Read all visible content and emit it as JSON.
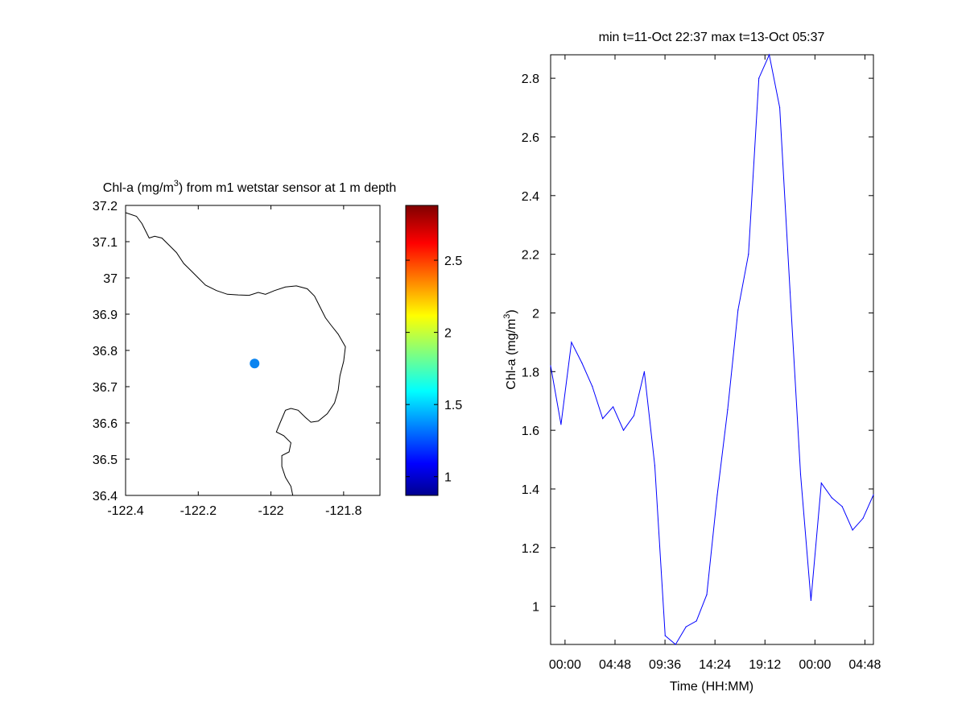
{
  "map_panel": {
    "title": {
      "prefix": "Chl-a (mg/m",
      "superscript": "3",
      "suffix": ") from m1 wetstar sensor at 1 m depth"
    },
    "lon_range": [
      -122.4,
      -121.7
    ],
    "lat_range": [
      36.4,
      37.2
    ],
    "x_ticks": [
      {
        "value": -122.4,
        "label": "-122.4"
      },
      {
        "value": -122.2,
        "label": "-122.2"
      },
      {
        "value": -122.0,
        "label": "-122"
      },
      {
        "value": -121.8,
        "label": "-121.8"
      }
    ],
    "y_ticks": [
      {
        "value": 37.2,
        "label": "37.2"
      },
      {
        "value": 37.1,
        "label": "37.1"
      },
      {
        "value": 37.0,
        "label": "37"
      },
      {
        "value": 36.9,
        "label": "36.9"
      },
      {
        "value": 36.8,
        "label": "36.8"
      },
      {
        "value": 36.7,
        "label": "36.7"
      },
      {
        "value": 36.6,
        "label": "36.6"
      },
      {
        "value": 36.5,
        "label": "36.5"
      },
      {
        "value": 36.4,
        "label": "36.4"
      }
    ],
    "station": {
      "lon": -122.045,
      "lat": 36.764,
      "color": "#0a84f0"
    },
    "coastline": [
      [
        -122.4,
        37.18
      ],
      [
        -122.37,
        37.17
      ],
      [
        -122.355,
        37.15
      ],
      [
        -122.345,
        37.13
      ],
      [
        -122.335,
        37.11
      ],
      [
        -122.32,
        37.115
      ],
      [
        -122.3,
        37.11
      ],
      [
        -122.28,
        37.09
      ],
      [
        -122.26,
        37.07
      ],
      [
        -122.24,
        37.04
      ],
      [
        -122.22,
        37.02
      ],
      [
        -122.2,
        37.0
      ],
      [
        -122.18,
        36.98
      ],
      [
        -122.15,
        36.965
      ],
      [
        -122.12,
        36.955
      ],
      [
        -122.09,
        36.953
      ],
      [
        -122.06,
        36.952
      ],
      [
        -122.035,
        36.96
      ],
      [
        -122.015,
        36.955
      ],
      [
        -121.99,
        36.965
      ],
      [
        -121.96,
        36.975
      ],
      [
        -121.93,
        36.978
      ],
      [
        -121.9,
        36.97
      ],
      [
        -121.88,
        36.95
      ],
      [
        -121.865,
        36.92
      ],
      [
        -121.85,
        36.89
      ],
      [
        -121.835,
        36.87
      ],
      [
        -121.815,
        36.845
      ],
      [
        -121.795,
        36.81
      ],
      [
        -121.8,
        36.77
      ],
      [
        -121.81,
        36.73
      ],
      [
        -121.815,
        36.69
      ],
      [
        -121.825,
        36.655
      ],
      [
        -121.845,
        36.625
      ],
      [
        -121.87,
        36.605
      ],
      [
        -121.89,
        36.602
      ],
      [
        -121.905,
        36.615
      ],
      [
        -121.925,
        36.635
      ],
      [
        -121.945,
        36.64
      ],
      [
        -121.96,
        36.635
      ],
      [
        -121.975,
        36.6
      ],
      [
        -121.985,
        36.575
      ],
      [
        -121.965,
        36.565
      ],
      [
        -121.945,
        36.545
      ],
      [
        -121.95,
        36.52
      ],
      [
        -121.97,
        36.51
      ],
      [
        -121.97,
        36.48
      ],
      [
        -121.96,
        36.45
      ],
      [
        -121.945,
        36.425
      ],
      [
        -121.94,
        36.4
      ]
    ]
  },
  "colorbar": {
    "range": [
      0.87,
      2.88
    ],
    "ticks": [
      {
        "value": 1.0,
        "label": "1"
      },
      {
        "value": 1.5,
        "label": "1.5"
      },
      {
        "value": 2.0,
        "label": "2"
      },
      {
        "value": 2.5,
        "label": "2.5"
      }
    ],
    "colormap": "jet"
  },
  "chart_data": {
    "type": "line",
    "title": "min t=11-Oct 22:37 max t=13-Oct 05:37",
    "xlabel": "Time (HH:MM)",
    "ylabel": {
      "prefix": "Chl-a (mg/m",
      "superscript": "3",
      "suffix": ")"
    },
    "xlim": [
      "2024-10-11 22:37",
      "2024-10-13 05:37"
    ],
    "ylim": [
      0.87,
      2.88
    ],
    "x_ticks": [
      {
        "value": "2024-10-12 00:00",
        "label": "00:00"
      },
      {
        "value": "2024-10-12 04:48",
        "label": "04:48"
      },
      {
        "value": "2024-10-12 09:36",
        "label": "09:36"
      },
      {
        "value": "2024-10-12 14:24",
        "label": "14:24"
      },
      {
        "value": "2024-10-12 19:12",
        "label": "19:12"
      },
      {
        "value": "2024-10-13 00:00",
        "label": "00:00"
      },
      {
        "value": "2024-10-13 04:48",
        "label": "04:48"
      }
    ],
    "y_ticks": [
      {
        "value": 1.0,
        "label": "1"
      },
      {
        "value": 1.2,
        "label": "1.2"
      },
      {
        "value": 1.4,
        "label": "1.4"
      },
      {
        "value": 1.6,
        "label": "1.6"
      },
      {
        "value": 1.8,
        "label": "1.8"
      },
      {
        "value": 2.0,
        "label": "2"
      },
      {
        "value": 2.2,
        "label": "2.2"
      },
      {
        "value": 2.4,
        "label": "2.4"
      },
      {
        "value": 2.6,
        "label": "2.6"
      },
      {
        "value": 2.8,
        "label": "2.8"
      }
    ],
    "series": [
      {
        "color": "#0000ff",
        "points": [
          [
            "2024-10-11 22:37",
            1.82
          ],
          [
            "2024-10-11 23:37",
            1.62
          ],
          [
            "2024-10-12 00:37",
            1.9
          ],
          [
            "2024-10-12 01:37",
            1.83
          ],
          [
            "2024-10-12 02:37",
            1.75
          ],
          [
            "2024-10-12 03:37",
            1.64
          ],
          [
            "2024-10-12 04:37",
            1.68
          ],
          [
            "2024-10-12 05:37",
            1.6
          ],
          [
            "2024-10-12 06:37",
            1.65
          ],
          [
            "2024-10-12 07:37",
            1.8
          ],
          [
            "2024-10-12 08:37",
            1.48
          ],
          [
            "2024-10-12 09:37",
            0.9
          ],
          [
            "2024-10-12 10:37",
            0.87
          ],
          [
            "2024-10-12 11:37",
            0.93
          ],
          [
            "2024-10-12 12:37",
            0.95
          ],
          [
            "2024-10-12 13:37",
            1.04
          ],
          [
            "2024-10-12 14:37",
            1.38
          ],
          [
            "2024-10-12 15:37",
            1.67
          ],
          [
            "2024-10-12 16:37",
            2.01
          ],
          [
            "2024-10-12 17:37",
            2.2
          ],
          [
            "2024-10-12 18:37",
            2.8
          ],
          [
            "2024-10-12 19:37",
            2.88
          ],
          [
            "2024-10-12 20:37",
            2.7
          ],
          [
            "2024-10-12 21:37",
            2.07
          ],
          [
            "2024-10-12 22:37",
            1.45
          ],
          [
            "2024-10-12 23:37",
            1.02
          ],
          [
            "2024-10-13 00:37",
            1.42
          ],
          [
            "2024-10-13 01:37",
            1.37
          ],
          [
            "2024-10-13 02:37",
            1.34
          ],
          [
            "2024-10-13 03:37",
            1.26
          ],
          [
            "2024-10-13 04:37",
            1.3
          ],
          [
            "2024-10-13 05:37",
            1.38
          ]
        ]
      }
    ]
  }
}
